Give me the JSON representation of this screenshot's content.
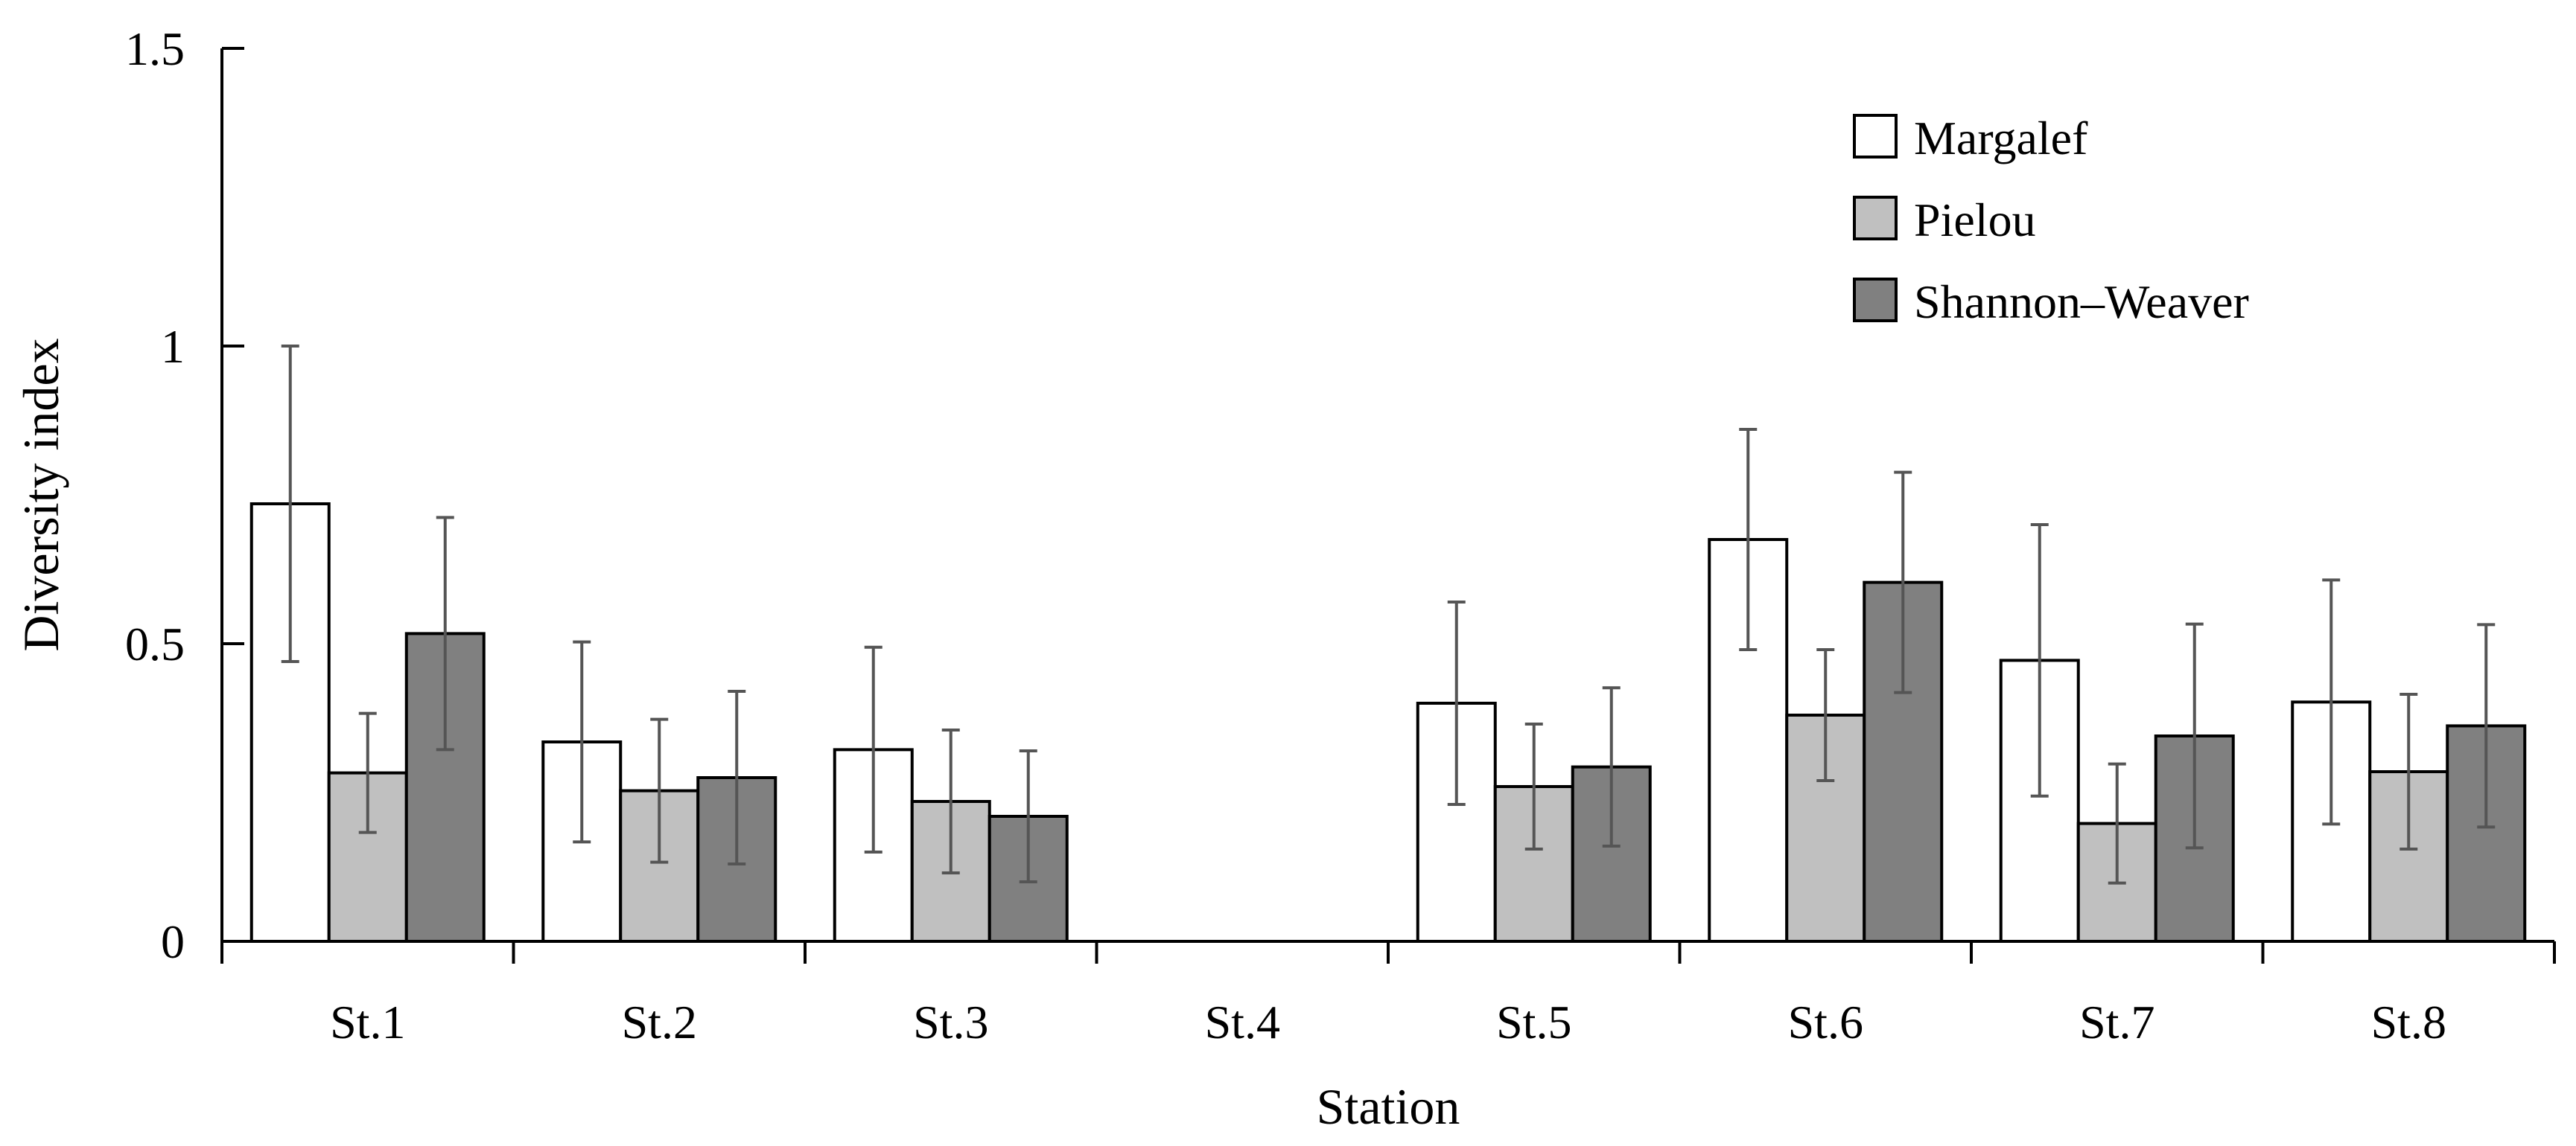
{
  "chart_data": {
    "type": "bar",
    "title": "",
    "xlabel": "Station",
    "ylabel": "Diversity index",
    "ylim": [
      0,
      1.5
    ],
    "yticks": [
      0,
      0.5,
      1,
      1.5
    ],
    "ytick_labels": [
      "0",
      "0.5",
      "1",
      "1.5"
    ],
    "grid": false,
    "legend_position": "top-right",
    "categories": [
      "St.1",
      "St.2",
      "St.3",
      "St.4",
      "St.5",
      "St.6",
      "St.7",
      "St.8"
    ],
    "series": [
      {
        "name": "Margalef",
        "color": "#ffffff",
        "values": [
          0.735,
          0.335,
          0.322,
          null,
          0.4,
          0.675,
          0.472,
          0.402
        ],
        "errors": [
          0.265,
          0.168,
          0.172,
          null,
          0.17,
          0.185,
          0.228,
          0.205
        ]
      },
      {
        "name": "Pielou",
        "color": "#c0c0c0",
        "values": [
          0.283,
          0.253,
          0.235,
          null,
          0.26,
          0.38,
          0.198,
          0.285
        ],
        "errors": [
          0.1,
          0.12,
          0.12,
          null,
          0.105,
          0.11,
          0.1,
          0.13
        ]
      },
      {
        "name": "Shannon–Weaver",
        "color": "#808080",
        "values": [
          0.517,
          0.275,
          0.21,
          null,
          0.293,
          0.603,
          0.345,
          0.362
        ],
        "errors": [
          0.195,
          0.145,
          0.11,
          null,
          0.133,
          0.185,
          0.188,
          0.17
        ]
      }
    ]
  }
}
